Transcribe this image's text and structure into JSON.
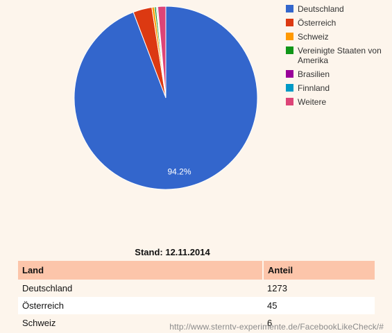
{
  "chart_data": {
    "type": "pie",
    "slices": [
      {
        "label": "Deutschland",
        "value": 1273,
        "color": "#3366cc"
      },
      {
        "label": "Österreich",
        "value": 45,
        "color": "#dc3912"
      },
      {
        "label": "Schweiz",
        "value": 6,
        "color": "#ff9900"
      },
      {
        "label": "Vereinigte Staaten von Amerika",
        "value": 4,
        "color": "#109618"
      },
      {
        "label": "Brasilien",
        "value": 2,
        "color": "#990099"
      },
      {
        "label": "Finnland",
        "value": 2,
        "color": "#0099c6"
      },
      {
        "label": "Weitere",
        "value": 19,
        "color": "#dd4477"
      }
    ],
    "data_labels": [
      {
        "slice": "Deutschland",
        "text": "94.2%"
      }
    ],
    "legend_position": "right"
  },
  "table": {
    "caption": "Stand: 12.11.2014",
    "headers": [
      "Land",
      "Anteil"
    ],
    "rows": [
      [
        "Deutschland",
        "1273"
      ],
      [
        "Österreich",
        "45"
      ],
      [
        "Schweiz",
        "6"
      ]
    ]
  },
  "watermark": "http://www.sterntv-experimente.de/FacebookLikeCheck/#"
}
